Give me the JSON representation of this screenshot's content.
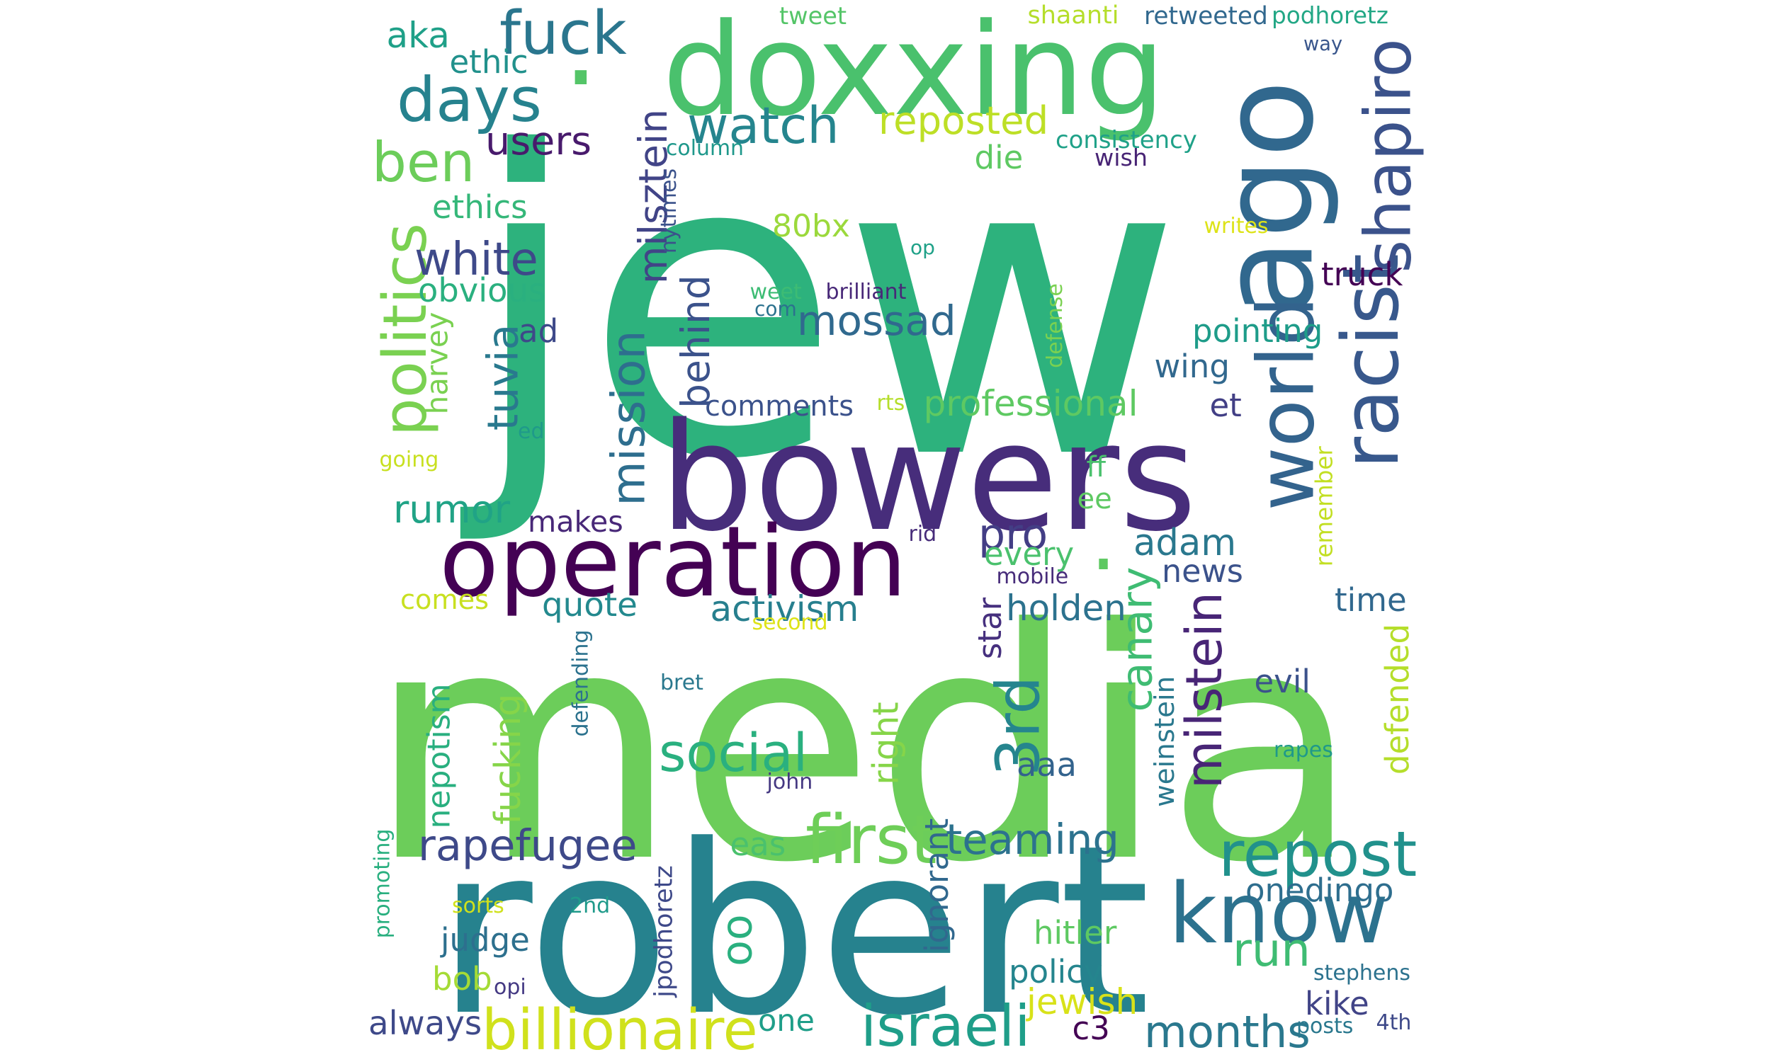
{
  "words": [
    {
      "text": "jew",
      "color": "#2db27d"
    },
    {
      "text": "media",
      "color": "#6ccd5a"
    },
    {
      "text": "robert",
      "color": "#26828e"
    },
    {
      "text": "bowers",
      "color": "#472d7b"
    },
    {
      "text": "ago",
      "color": "#31688e"
    },
    {
      "text": "doxxing",
      "color": "#4ac16d"
    },
    {
      "text": "operation",
      "color": "#440154"
    },
    {
      "text": "world",
      "color": "#33638d"
    },
    {
      "text": "racist",
      "color": "#38588c"
    },
    {
      "text": "know",
      "color": "#2c728e"
    },
    {
      "text": "first",
      "color": "#6ece58"
    },
    {
      "text": "repost",
      "color": "#21918c"
    },
    {
      "text": "politics",
      "color": "#7ad151"
    },
    {
      "text": "shapiro",
      "color": "#3b528b"
    },
    {
      "text": "billionaire",
      "color": "#d0e11c"
    },
    {
      "text": "israeli",
      "color": "#1f9e89"
    },
    {
      "text": "months",
      "color": "#2a788e"
    },
    {
      "text": "3rd",
      "color": "#25858e"
    },
    {
      "text": "milstein",
      "color": "#482576"
    },
    {
      "text": "days",
      "color": "#26828e"
    },
    {
      "text": "fuck",
      "color": "#2a768e"
    },
    {
      "text": "ben",
      "color": "#6ccd5a"
    },
    {
      "text": "social",
      "color": "#2ab07f"
    },
    {
      "text": "teaming",
      "color": "#2c728e"
    },
    {
      "text": "rapefugee",
      "color": "#3e4989"
    },
    {
      "text": "mossad",
      "color": "#30698e"
    },
    {
      "text": "canary",
      "color": "#3fbc73"
    },
    {
      "text": "run",
      "color": "#3fbc73"
    },
    {
      "text": "mission",
      "color": "#2e6e8e"
    },
    {
      "text": "tuvia",
      "color": "#29798e"
    },
    {
      "text": "milsztein",
      "color": "#414487"
    },
    {
      "text": "watch",
      "color": "#25858e"
    },
    {
      "text": "reposted",
      "color": "#bddf26"
    },
    {
      "text": "adam",
      "color": "#2a788e"
    },
    {
      "text": "white",
      "color": "#3e4989"
    },
    {
      "text": "pro",
      "color": "#433e85"
    },
    {
      "text": "behind",
      "color": "#3b528b"
    },
    {
      "text": "rumor",
      "color": "#20a386"
    },
    {
      "text": "aka",
      "color": "#1fa088"
    },
    {
      "text": "users",
      "color": "#481a6c"
    },
    {
      "text": "ethic",
      "color": "#21918c"
    },
    {
      "text": "ethics",
      "color": "#35b779"
    },
    {
      "text": "80bx",
      "color": "#9bd93c"
    },
    {
      "text": "obvious",
      "color": "#2ab07f"
    },
    {
      "text": "professional",
      "color": "#5ec962"
    },
    {
      "text": "comments",
      "color": "#3b528b"
    },
    {
      "text": "activism",
      "color": "#277f8e"
    },
    {
      "text": "holden",
      "color": "#2c728e"
    },
    {
      "text": "quote",
      "color": "#23898e"
    },
    {
      "text": "comes",
      "color": "#c8e020"
    },
    {
      "text": "makes",
      "color": "#482878"
    },
    {
      "text": "news",
      "color": "#3b528b"
    },
    {
      "text": "every",
      "color": "#4ac16d"
    },
    {
      "text": "truck",
      "color": "#440154"
    },
    {
      "text": "pointing",
      "color": "#1e9c89"
    },
    {
      "text": "wing",
      "color": "#31688e"
    },
    {
      "text": "et",
      "color": "#423f85"
    },
    {
      "text": "ad",
      "color": "#3e4989"
    },
    {
      "text": "harvey",
      "color": "#7ad151"
    },
    {
      "text": "nepotism",
      "color": "#29af7f"
    },
    {
      "text": "fucking",
      "color": "#86d549"
    },
    {
      "text": "right",
      "color": "#86d549"
    },
    {
      "text": "aaa",
      "color": "#33638d"
    },
    {
      "text": "weinstein",
      "color": "#2a788e"
    },
    {
      "text": "evil",
      "color": "#3b528b"
    },
    {
      "text": "defended",
      "color": "#b5de2b"
    },
    {
      "text": "time",
      "color": "#31688e"
    },
    {
      "text": "remember",
      "color": "#c2df23"
    },
    {
      "text": "hitler",
      "color": "#5ec962"
    },
    {
      "text": "policy",
      "color": "#25858e"
    },
    {
      "text": "jewish",
      "color": "#d8e219"
    },
    {
      "text": "kike",
      "color": "#414487"
    },
    {
      "text": "judge",
      "color": "#2d708e"
    },
    {
      "text": "bob",
      "color": "#a5db36"
    },
    {
      "text": "always",
      "color": "#3e4989"
    },
    {
      "text": "one",
      "color": "#1f9e89"
    },
    {
      "text": "c3",
      "color": "#440154"
    },
    {
      "text": "onedingo",
      "color": "#2e6e8e"
    },
    {
      "text": "ignorant",
      "color": "#31688e"
    },
    {
      "text": "oo",
      "color": "#2ab07f"
    },
    {
      "text": "eas",
      "color": "#4ac16d"
    },
    {
      "text": "star",
      "color": "#46307e"
    },
    {
      "text": "ff",
      "color": "#4ac16d"
    },
    {
      "text": "ee",
      "color": "#5ec962"
    },
    {
      "text": "die",
      "color": "#5ec962"
    },
    {
      "text": "tweet",
      "color": "#54c568"
    },
    {
      "text": "shaanti",
      "color": "#b5de2b"
    },
    {
      "text": "retweeted",
      "color": "#31688e"
    },
    {
      "text": "podhoretz",
      "color": "#22a785"
    },
    {
      "text": "way",
      "color": "#39568c"
    },
    {
      "text": "consistency",
      "color": "#1fa188"
    },
    {
      "text": "wish",
      "color": "#482475"
    },
    {
      "text": "column",
      "color": "#1f988b"
    },
    {
      "text": "nytimes",
      "color": "#3b528b"
    },
    {
      "text": "writes",
      "color": "#dde318"
    },
    {
      "text": "op",
      "color": "#1fa188"
    },
    {
      "text": "brilliant",
      "color": "#482878"
    },
    {
      "text": "weet",
      "color": "#3dbc74"
    },
    {
      "text": "com",
      "color": "#2c728e"
    },
    {
      "text": "defense",
      "color": "#7ad151"
    },
    {
      "text": "rts",
      "color": "#b5de2b"
    },
    {
      "text": "ed",
      "color": "#1f9a8a"
    },
    {
      "text": "going",
      "color": "#c8e020"
    },
    {
      "text": "rid",
      "color": "#472c7a"
    },
    {
      "text": "mobile",
      "color": "#472c7a"
    },
    {
      "text": "second",
      "color": "#dde318"
    },
    {
      "text": "bret",
      "color": "#2a788e"
    },
    {
      "text": "defending",
      "color": "#2c728e"
    },
    {
      "text": "rapes",
      "color": "#1f998a"
    },
    {
      "text": "john",
      "color": "#453882"
    },
    {
      "text": "promoting",
      "color": "#29af7f"
    },
    {
      "text": "sorts",
      "color": "#d0e11c"
    },
    {
      "text": "2nd",
      "color": "#1f9a8a"
    },
    {
      "text": "jpodhoretz",
      "color": "#3e4989"
    },
    {
      "text": "stephens",
      "color": "#2c728e"
    },
    {
      "text": "opi",
      "color": "#443983"
    },
    {
      "text": "posts",
      "color": "#2a788e"
    },
    {
      "text": "4th",
      "color": "#3e4989"
    },
    {
      "text": ".",
      "color": "#54c568"
    },
    {
      "text": ".",
      "color": "#5ec962"
    }
  ]
}
